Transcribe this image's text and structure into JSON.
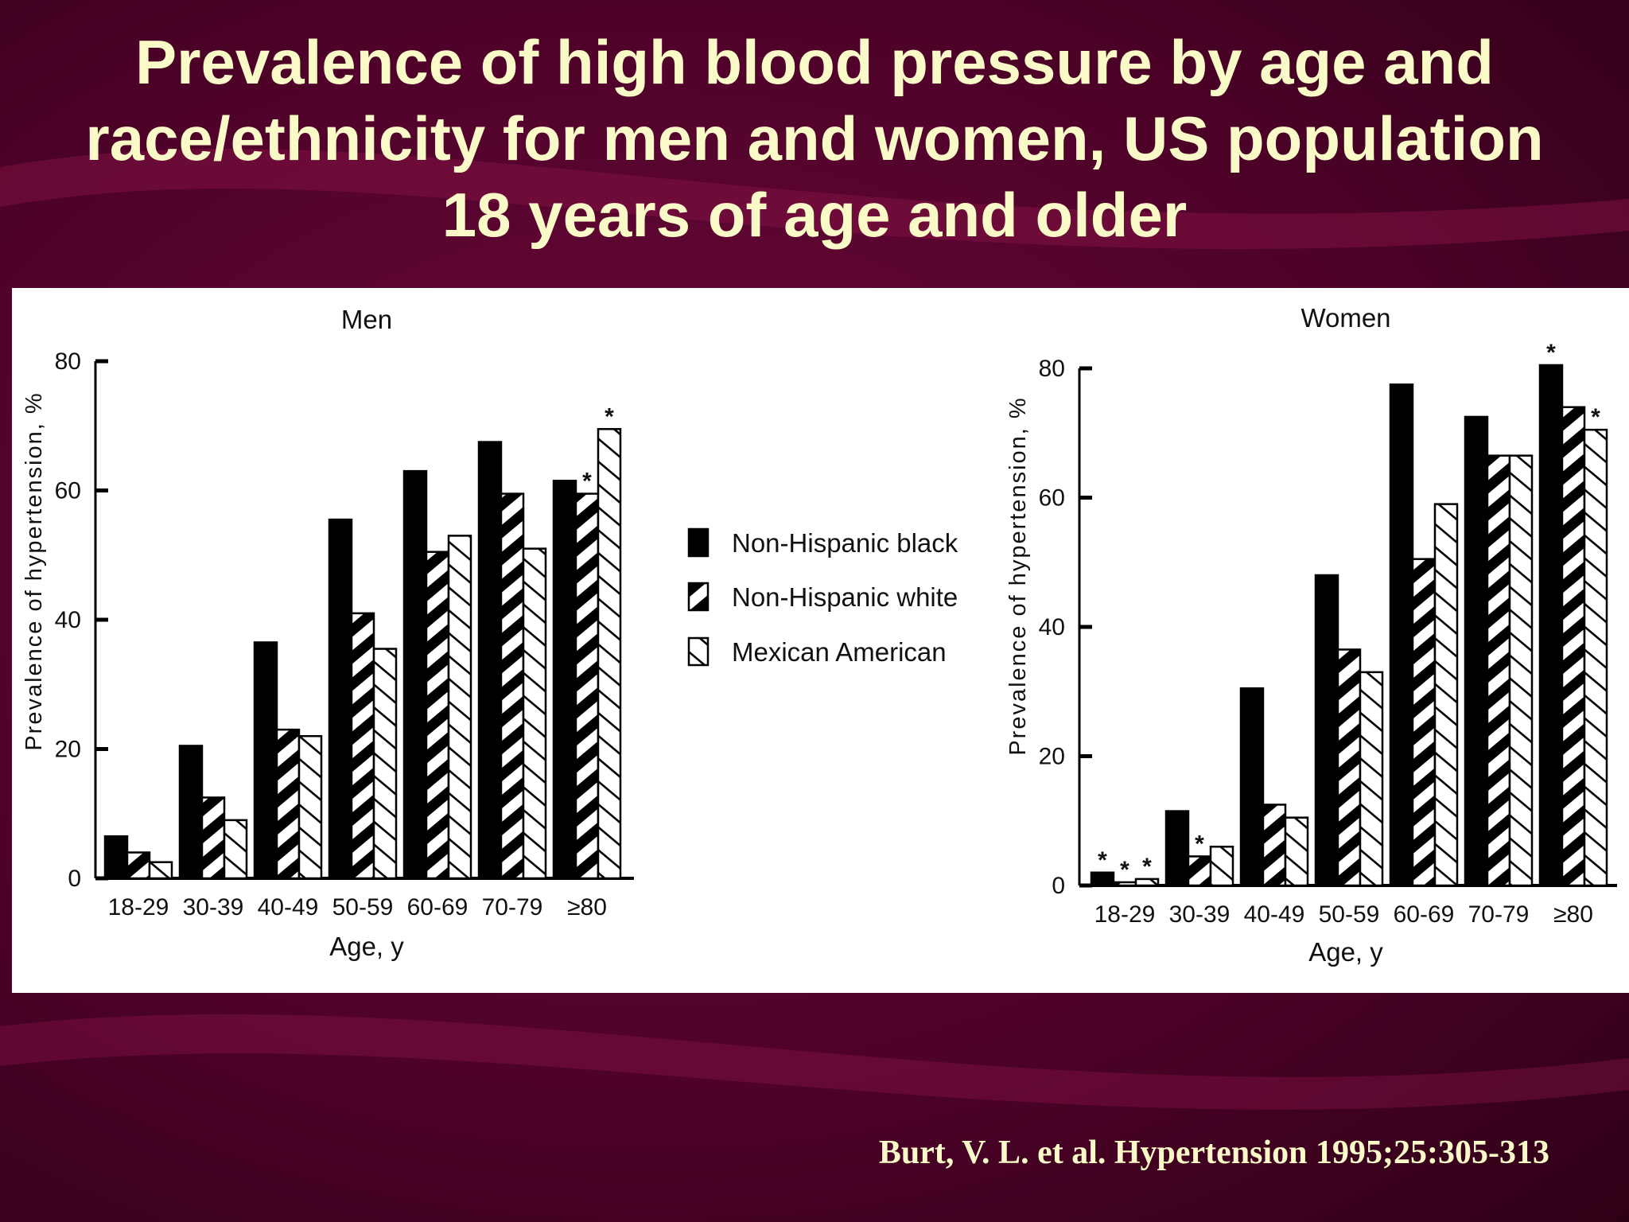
{
  "slide": {
    "title": "Prevalence of high blood pressure by age and race/ethnicity for men and women, US population 18 years of age and older",
    "citation": "Burt, V. L. et al. Hypertension 1995;25:305-313",
    "colors": {
      "background": "#5a0530",
      "title_text": "#fafac8",
      "panel": "#ffffff"
    }
  },
  "legend": {
    "placement": "between panels",
    "entries": [
      {
        "label": "Non-Hispanic black",
        "pattern": "solid"
      },
      {
        "label": "Non-Hispanic white",
        "pattern": "thick diagonal hatch"
      },
      {
        "label": "Mexican American",
        "pattern": "thin diagonal hatch"
      }
    ]
  },
  "chart_data": [
    {
      "type": "bar",
      "title": "Men",
      "xlabel": "Age, y",
      "ylabel": "Prevalence of hypertension, %",
      "ylim": [
        0,
        80
      ],
      "yticks": [
        "0",
        "20",
        "40",
        "60",
        "80"
      ],
      "categories": [
        "18-29",
        "30-39",
        "40-49",
        "50-59",
        "60-69",
        "70-79",
        "≥80"
      ],
      "series": [
        {
          "name": "Non-Hispanic black",
          "values": [
            6.5,
            20.5,
            36.5,
            55.5,
            63,
            67.5,
            61.5
          ],
          "asterisks": [
            false,
            false,
            false,
            false,
            false,
            false,
            false
          ]
        },
        {
          "name": "Non-Hispanic white",
          "values": [
            4,
            12.5,
            23,
            41,
            50.5,
            59.5,
            59.5
          ],
          "asterisks": [
            false,
            false,
            false,
            false,
            false,
            false,
            true
          ]
        },
        {
          "name": "Mexican American",
          "values": [
            2.5,
            9,
            22,
            35.5,
            53,
            51,
            69.5
          ],
          "asterisks": [
            false,
            false,
            false,
            false,
            false,
            false,
            true
          ]
        }
      ]
    },
    {
      "type": "bar",
      "title": "Women",
      "xlabel": "Age, y",
      "ylabel": "Prevalence of hypertension, %",
      "ylim": [
        0,
        80
      ],
      "yticks": [
        "0",
        "20",
        "40",
        "60",
        "80"
      ],
      "categories": [
        "18-29",
        "30-39",
        "40-49",
        "50-59",
        "60-69",
        "70-79",
        "≥80"
      ],
      "series": [
        {
          "name": "Non-Hispanic black",
          "values": [
            2,
            11.5,
            30.5,
            48,
            77.5,
            72.5,
            80.5
          ],
          "asterisks": [
            true,
            false,
            false,
            false,
            false,
            false,
            true
          ]
        },
        {
          "name": "Non-Hispanic white",
          "values": [
            0.5,
            4.5,
            12.5,
            36.5,
            50.5,
            66.5,
            74
          ],
          "asterisks": [
            true,
            true,
            false,
            false,
            false,
            false,
            false
          ]
        },
        {
          "name": "Mexican American",
          "values": [
            1,
            6,
            10.5,
            33,
            59,
            66.5,
            70.5
          ],
          "asterisks": [
            true,
            false,
            false,
            false,
            false,
            false,
            true
          ]
        }
      ]
    }
  ]
}
